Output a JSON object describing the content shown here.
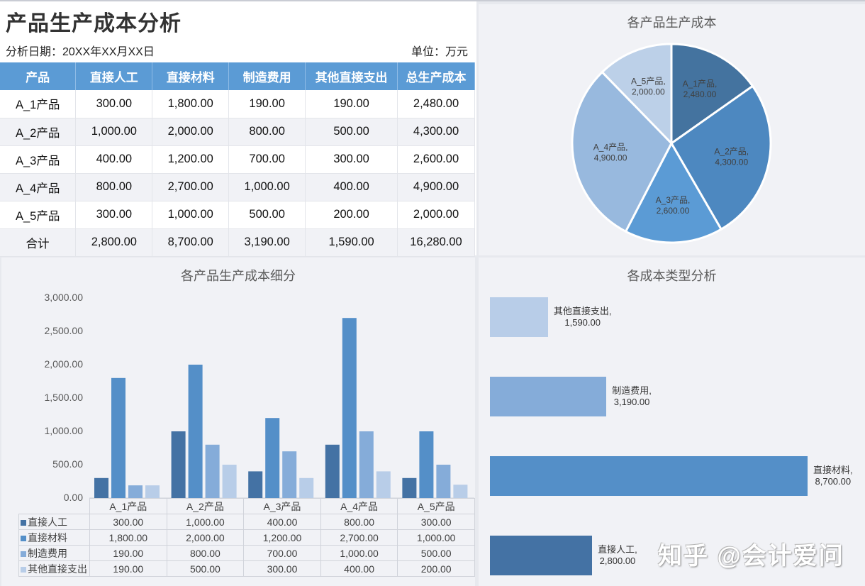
{
  "header": {
    "title": "产品生产成本分析",
    "date_label": "分析日期：20XX年XX月XX日",
    "unit_label": "单位：万元"
  },
  "table": {
    "columns": [
      "产品",
      "直接人工",
      "直接材料",
      "制造费用",
      "其他直接支出",
      "总生产成本"
    ],
    "rows": [
      [
        "A_1产品",
        "300.00",
        "1,800.00",
        "190.00",
        "190.00",
        "2,480.00"
      ],
      [
        "A_2产品",
        "1,000.00",
        "2,000.00",
        "800.00",
        "500.00",
        "4,300.00"
      ],
      [
        "A_3产品",
        "400.00",
        "1,200.00",
        "700.00",
        "300.00",
        "2,600.00"
      ],
      [
        "A_4产品",
        "800.00",
        "2,700.00",
        "1,000.00",
        "400.00",
        "4,900.00"
      ],
      [
        "A_5产品",
        "300.00",
        "1,000.00",
        "500.00",
        "200.00",
        "2,000.00"
      ],
      [
        "合计",
        "2,800.00",
        "8,700.00",
        "3,190.00",
        "1,590.00",
        "16,280.00"
      ]
    ]
  },
  "colors": {
    "header_bg": "#5b9bd5",
    "series": [
      "#4472a4",
      "#548fc8",
      "#85acd9",
      "#b8cde8"
    ],
    "pie": [
      "#44739f",
      "#4d88c0",
      "#5b9bd5",
      "#98b9de",
      "#bcd0e8"
    ],
    "panel_bg": "#f1f2f6"
  },
  "chart_data": [
    {
      "type": "pie",
      "title": "各产品生产成本",
      "categories": [
        "A_1产品",
        "A_2产品",
        "A_3产品",
        "A_4产品",
        "A_5产品"
      ],
      "values": [
        2480,
        4300,
        2600,
        4900,
        2000
      ],
      "labels": [
        "A_1产品, 2,480.00",
        "A_2产品, 4,300.00",
        "A_3产品, 2,600.00",
        "A_4产品, 4,900.00",
        "A_5产品, 2,000.00"
      ]
    },
    {
      "type": "bar",
      "title": "各产品生产成本细分",
      "categories": [
        "A_1产品",
        "A_2产品",
        "A_3产品",
        "A_4产品",
        "A_5产品"
      ],
      "series": [
        {
          "name": "直接人工",
          "values": [
            300,
            1000,
            400,
            800,
            300
          ]
        },
        {
          "name": "直接材料",
          "values": [
            1800,
            2000,
            1200,
            2700,
            1000
          ]
        },
        {
          "name": "制造费用",
          "values": [
            190,
            800,
            700,
            1000,
            500
          ]
        },
        {
          "name": "其他直接支出",
          "values": [
            190,
            500,
            300,
            400,
            200
          ]
        }
      ],
      "yticks": [
        "3,000.00",
        "2,500.00",
        "2,000.00",
        "1,500.00",
        "1,000.00",
        "500.00",
        "0.00"
      ],
      "ylim": [
        0,
        3000
      ],
      "data_table": true
    },
    {
      "type": "bar",
      "orientation": "horizontal",
      "title": "各成本类型分析",
      "categories": [
        "其他直接支出",
        "制造费用",
        "直接材料",
        "直接人工"
      ],
      "values": [
        1590,
        3190,
        8700,
        2800
      ],
      "labels": [
        "1,590.00",
        "3,190.00",
        "8,700.00",
        "2,800.00"
      ]
    }
  ],
  "watermark": "知乎 @会计爱问"
}
